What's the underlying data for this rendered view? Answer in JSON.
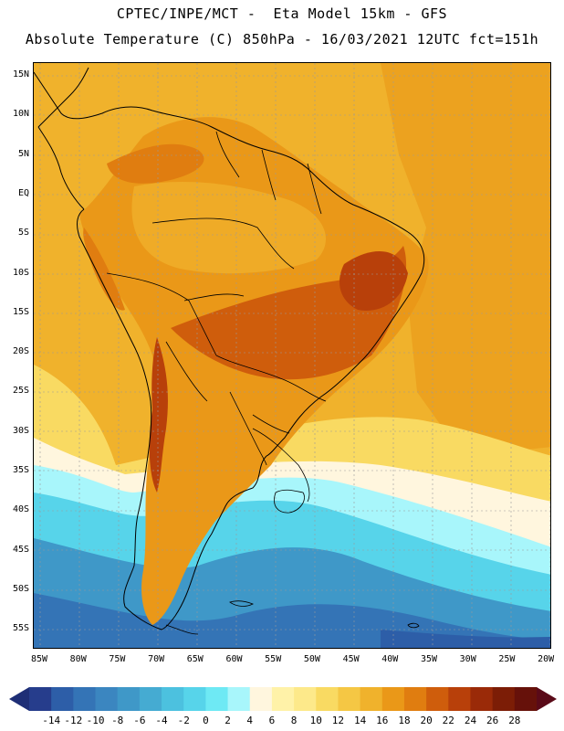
{
  "header": {
    "line1": "CPTEC/INPE/MCT -  Eta Model 15km - GFS",
    "line2": "Absolute Temperature (C) 850hPa - 16/03/2021 12UTC fct=151h"
  },
  "map": {
    "lat_labels": [
      "15N",
      "10N",
      "5N",
      "EQ",
      "5S",
      "10S",
      "15S",
      "20S",
      "25S",
      "30S",
      "35S",
      "40S",
      "45S",
      "50S",
      "55S"
    ],
    "lon_labels": [
      "85W",
      "80W",
      "75W",
      "70W",
      "65W",
      "60W",
      "55W",
      "50W",
      "45W",
      "40W",
      "35W",
      "30W",
      "25W",
      "20W"
    ]
  },
  "colorbar": {
    "labels": [
      "-14",
      "-12",
      "-10",
      "-8",
      "-6",
      "-4",
      "-2",
      "0",
      "2",
      "4",
      "6",
      "8",
      "10",
      "12",
      "14",
      "16",
      "18",
      "20",
      "22",
      "24",
      "26",
      "28"
    ],
    "colors": [
      "#263d8c",
      "#2d5ea8",
      "#3474b6",
      "#3b86c0",
      "#3f98c8",
      "#45abd2",
      "#4cc1df",
      "#57d4ea",
      "#6ee9f4",
      "#a8f6fb",
      "#fff6de",
      "#fff2a8",
      "#fde98a",
      "#f9da62",
      "#f5c744",
      "#f0b22c",
      "#ea9818",
      "#e07d10",
      "#cf5d0c",
      "#b8400a",
      "#9a2a08",
      "#7c1d06",
      "#66110a"
    ],
    "left_arrow": "#1e2e76",
    "right_arrow": "#5a0a18"
  }
}
